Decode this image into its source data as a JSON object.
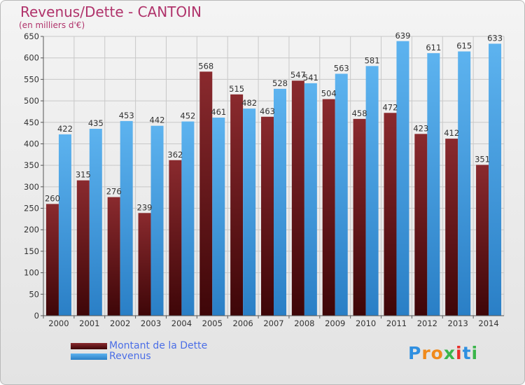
{
  "title": "Revenus/Dette - CANTOIN",
  "subtitle": "(en milliers d'€)",
  "logo": {
    "text": "Proxiti",
    "letters": [
      "P",
      "r",
      "o",
      "x",
      "i",
      "t",
      "i"
    ],
    "colors": [
      "#2f8fe0",
      "#f08a1c",
      "#f08a1c",
      "#3ab54a",
      "#e8302a",
      "#2f8fe0",
      "#3ab54a"
    ]
  },
  "legend": {
    "dette": "Montant de la Dette",
    "revenus": "Revenus"
  },
  "colors": {
    "dette": "#6e1f22",
    "dette_dark": "#4a0d10",
    "revenus": "#4ba6e8",
    "revenus_dark": "#2f87cf",
    "grid": "#c8c8c8",
    "text": "#333333"
  },
  "chart_data": {
    "type": "bar",
    "categories": [
      "2000",
      "2001",
      "2002",
      "2003",
      "2004",
      "2005",
      "2006",
      "2007",
      "2008",
      "2009",
      "2010",
      "2011",
      "2012",
      "2013",
      "2014"
    ],
    "series": [
      {
        "name": "Montant de la Dette",
        "values": [
          260,
          315,
          276,
          239,
          362,
          568,
          515,
          463,
          547,
          504,
          458,
          472,
          423,
          412,
          351
        ]
      },
      {
        "name": "Revenus",
        "values": [
          422,
          435,
          453,
          442,
          452,
          461,
          482,
          528,
          541,
          563,
          581,
          639,
          611,
          615,
          633
        ]
      }
    ],
    "ylim": [
      0,
      650
    ],
    "yticks": [
      0,
      50,
      100,
      150,
      200,
      250,
      300,
      350,
      400,
      450,
      500,
      550,
      600,
      650
    ],
    "grid": true,
    "legend_position": "bottom-left"
  }
}
